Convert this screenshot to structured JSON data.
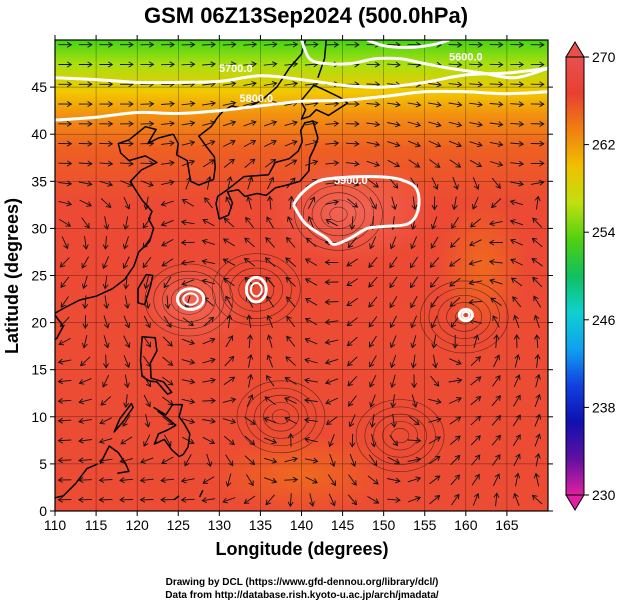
{
  "chart_data": {
    "type": "heatmap",
    "title": "GSM 06Z13Sep2024 (500.0hPa)",
    "xlabel": "Longitude (degrees)",
    "ylabel": "Latitude  (degrees)",
    "xlim": [
      110,
      170
    ],
    "ylim": [
      0,
      50
    ],
    "x_ticks": [
      "110",
      "115",
      "120",
      "125",
      "130",
      "135",
      "140",
      "145",
      "150",
      "155",
      "160",
      "165"
    ],
    "y_ticks": [
      "0",
      "5",
      "10",
      "15",
      "20",
      "25",
      "30",
      "35",
      "40",
      "45"
    ],
    "grid": true,
    "colorbar": {
      "min": 230,
      "max": 270,
      "ticks": [
        "230",
        "238",
        "246",
        "254",
        "262",
        "270"
      ],
      "colors": [
        "#e020a0",
        "#6010a0",
        "#1010b0",
        "#1040e0",
        "#10a0f0",
        "#10d0d0",
        "#10c060",
        "#50d010",
        "#c0e010",
        "#f0c000",
        "#f08010",
        "#e84030",
        "#e85050"
      ]
    },
    "contours": [
      {
        "label": "5700.0",
        "level": 5700,
        "points": [
          [
            110,
            46
          ],
          [
            115,
            45.8
          ],
          [
            120,
            45.5
          ],
          [
            125,
            45.5
          ],
          [
            130,
            45.6
          ],
          [
            135,
            46.2
          ],
          [
            140,
            45.8
          ],
          [
            145,
            45.2
          ],
          [
            150,
            45
          ],
          [
            155,
            45.5
          ],
          [
            160,
            46.3
          ],
          [
            165,
            46.5
          ],
          [
            170,
            47
          ]
        ]
      },
      {
        "label": "5800.0",
        "level": 5800,
        "points": [
          [
            110,
            41.5
          ],
          [
            115,
            41.8
          ],
          [
            120,
            42.3
          ],
          [
            125,
            42.2
          ],
          [
            130,
            42.5
          ],
          [
            135,
            43
          ],
          [
            140,
            43.5
          ],
          [
            145,
            43.6
          ],
          [
            150,
            44
          ],
          [
            155,
            44.5
          ],
          [
            160,
            44.5
          ],
          [
            165,
            44.3
          ],
          [
            170,
            44.5
          ]
        ]
      },
      {
        "label": "5600.0",
        "level": 5600,
        "points": [
          [
            140,
            50
          ],
          [
            141,
            48
          ],
          [
            143,
            47.5
          ],
          [
            146,
            47.5
          ],
          [
            149,
            48
          ],
          [
            152,
            48
          ],
          [
            155,
            47.5
          ],
          [
            158,
            47
          ],
          [
            162,
            46.5
          ],
          [
            166,
            46
          ],
          [
            170,
            47
          ]
        ]
      },
      {
        "label": "",
        "level": 5500,
        "points": [
          [
            148,
            50
          ],
          [
            150,
            49.4
          ],
          [
            153,
            49.2
          ],
          [
            156,
            49.5
          ],
          [
            158,
            50
          ]
        ]
      },
      {
        "label": "5900.0",
        "level": 5900,
        "points": [
          [
            139,
            32.5
          ],
          [
            140,
            33.7
          ],
          [
            142,
            35
          ],
          [
            145,
            35.4
          ],
          [
            149,
            35.5
          ],
          [
            152,
            35.2
          ],
          [
            154,
            34.2
          ],
          [
            154.2,
            32
          ],
          [
            153,
            30.5
          ],
          [
            150,
            30.2
          ],
          [
            148,
            30
          ],
          [
            146,
            29
          ],
          [
            144,
            28.3
          ],
          [
            143,
            29
          ],
          [
            140.5,
            30.5
          ],
          [
            139,
            32.5
          ]
        ]
      }
    ],
    "closed_cells": [
      {
        "center": [
          126.5,
          22.5
        ],
        "rx": 1.6,
        "ry": 1.1
      },
      {
        "center": [
          134.5,
          23.5
        ],
        "rx": 1.2,
        "ry": 1.3
      },
      {
        "center": [
          160,
          20.8
        ],
        "rx": 0.8,
        "ry": 0.6
      }
    ],
    "vortex_centers": [
      [
        126.3,
        22.4
      ],
      [
        134.5,
        23.5
      ],
      [
        144.5,
        31.5
      ],
      [
        159.8,
        20.6
      ],
      [
        152,
        8
      ],
      [
        137.5,
        10
      ]
    ]
  },
  "credits": {
    "line1": "Drawing by DCL (https://www.gfd-dennou.org/library/dcl/)",
    "line2": "Data from http://database.rish.kyoto-u.ac.jp/arch/jmadata/"
  }
}
